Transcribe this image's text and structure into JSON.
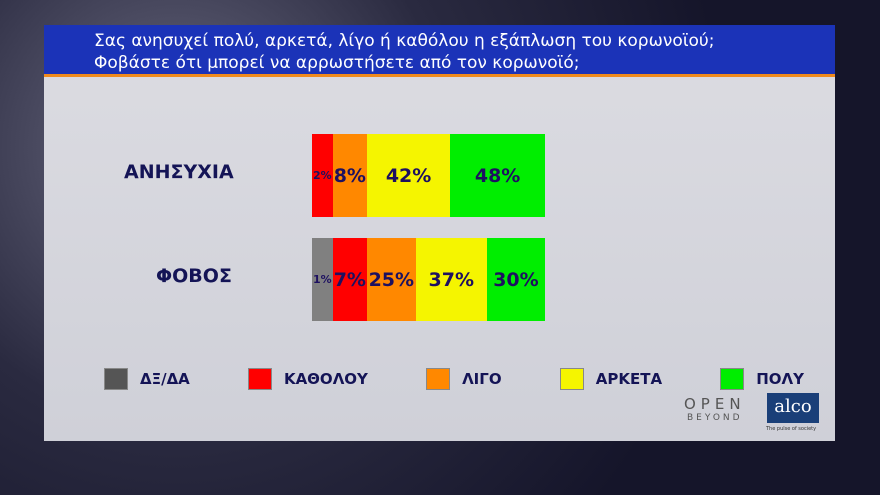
{
  "header": {
    "line1": "Σας ανησυχεί πολύ, αρκετά, λίγο ή καθόλου η εξάπλωση του κορωνοϊού;",
    "line2": "Φοβάστε ότι μπορεί να αρρωστήσετε από τον κορωνοϊό;"
  },
  "chart_data": {
    "type": "bar",
    "orientation": "horizontal",
    "stacked": true,
    "categories": [
      "ΑΝΗΣΥΧΙΑ",
      "ΦΟΒΟΣ"
    ],
    "series": [
      {
        "name": "ΔΞ/ΔΑ",
        "color": "#808080",
        "values": [
          0,
          1
        ],
        "labels": [
          "",
          "1%"
        ]
      },
      {
        "name": "ΚΑΘΟΛΟΥ",
        "color": "#ff0000",
        "values": [
          2,
          7
        ],
        "labels": [
          "2%",
          "7%"
        ]
      },
      {
        "name": "ΛΙΓΟ",
        "color": "#ff8800",
        "values": [
          8,
          25
        ],
        "labels": [
          "8%",
          "25%"
        ]
      },
      {
        "name": "ΑΡΚΕΤΑ",
        "color": "#f5f500",
        "values": [
          42,
          37
        ],
        "labels": [
          "42%",
          "37%"
        ]
      },
      {
        "name": "ΠΟΛΥ",
        "color": "#00ee00",
        "values": [
          48,
          30
        ],
        "labels": [
          "48%",
          "30%"
        ]
      }
    ],
    "legend": "bottom"
  },
  "logos": {
    "open": "OPEN",
    "open_sub": "BEYOND",
    "alco": "alco",
    "alco_tagline": "The pulse of society"
  }
}
